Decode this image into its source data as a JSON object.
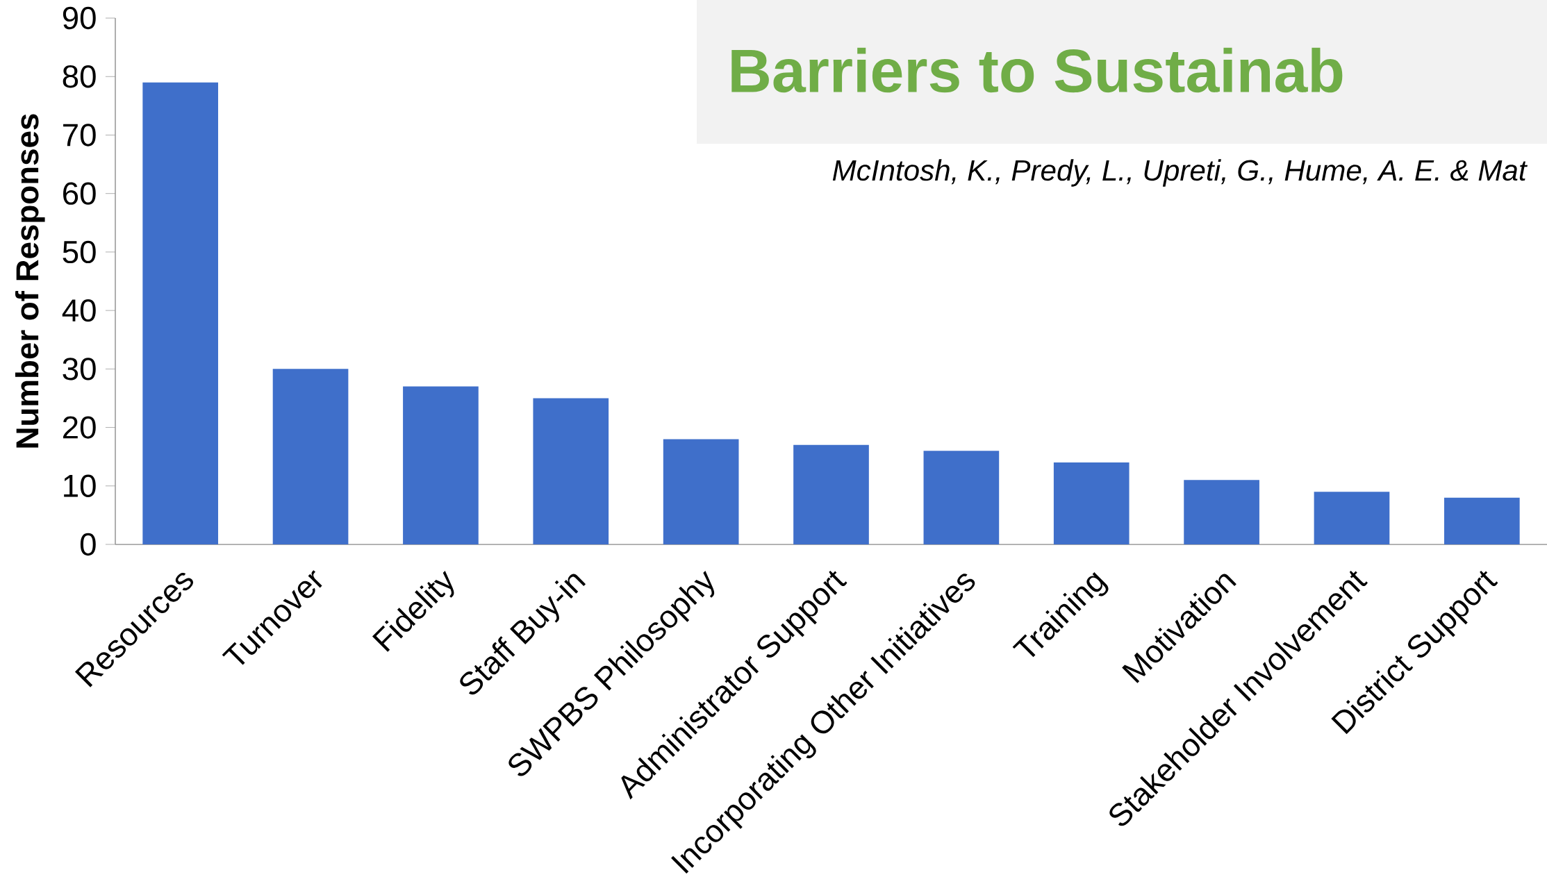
{
  "chart_data": {
    "type": "bar",
    "title": "Barriers to Sustainab",
    "subtitle": "McIntosh, K., Predy, L., Upreti, G., Hume, A. E. & Mat",
    "ylabel": "Number of Responses",
    "categories": [
      "Resources",
      "Turnover",
      "Fidelity",
      "Staff Buy-in",
      "SWPBS Philosophy",
      "Administrator Support",
      "Incorporating Other Initiatives",
      "Training",
      "Motivation",
      "Stakeholder Involvement",
      "District Support"
    ],
    "values": [
      79,
      30,
      27,
      25,
      18,
      17,
      16,
      14,
      11,
      9,
      8
    ],
    "color": "#3f6fca",
    "ylim": [
      0,
      90
    ],
    "yticks": [
      0,
      10,
      20,
      30,
      40,
      50,
      60,
      70,
      80,
      90
    ]
  }
}
